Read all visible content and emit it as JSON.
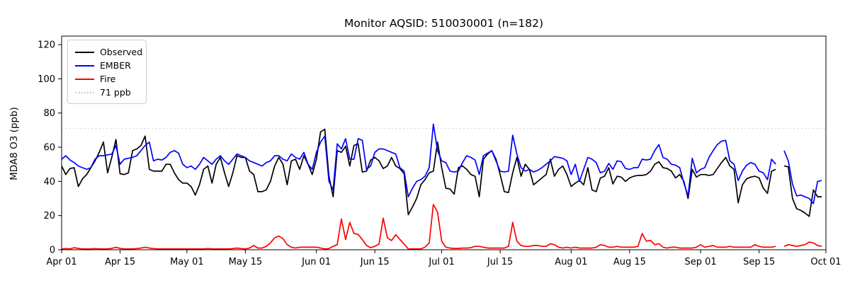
{
  "title": "Monitor AQSID: 510030001 (n=182)",
  "axes": {
    "ylabel": "MDA8 O3 (ppb)",
    "yticks": [
      0,
      20,
      40,
      60,
      80,
      100,
      120
    ],
    "ylim": [
      0,
      125
    ],
    "xlim_days": [
      0,
      183
    ],
    "xticks": [
      {
        "label": "Apr 01",
        "day": 0
      },
      {
        "label": "Apr 15",
        "day": 14
      },
      {
        "label": "May 01",
        "day": 30
      },
      {
        "label": "May 15",
        "day": 44
      },
      {
        "label": "Jun 01",
        "day": 61
      },
      {
        "label": "Jun 15",
        "day": 75
      },
      {
        "label": "Jul 01",
        "day": 91
      },
      {
        "label": "Jul 15",
        "day": 105
      },
      {
        "label": "Aug 01",
        "day": 122
      },
      {
        "label": "Aug 15",
        "day": 136
      },
      {
        "label": "Sep 01",
        "day": 153
      },
      {
        "label": "Sep 15",
        "day": 167
      },
      {
        "label": "Oct 01",
        "day": 183
      }
    ]
  },
  "legend": {
    "items": [
      {
        "label": "Observed",
        "color": "#000000",
        "style": "solid"
      },
      {
        "label": "EMBER",
        "color": "#0000ff",
        "style": "solid"
      },
      {
        "label": "Fire",
        "color": "#ff0000",
        "style": "solid"
      },
      {
        "label": "71 ppb",
        "color": "#c9c9c9",
        "style": "dotted"
      }
    ]
  },
  "chart_data": {
    "type": "line",
    "x_axis": "date, daily from Apr 01 to Sep 30 (day index 0-182), one missing day (Sep 20) so n=182",
    "title": "Monitor AQSID: 510030001 (n=182)",
    "ylabel": "MDA8 O3 (ppb)",
    "ylim": [
      0,
      125
    ],
    "grid": false,
    "legend_position": "upper left",
    "threshold": {
      "value": 71,
      "label": "71 ppb",
      "color": "#c9c9c9",
      "linestyle": "dotted"
    },
    "series": [
      {
        "name": "Observed",
        "color": "#000000",
        "values": [
          49,
          44,
          47.5,
          48,
          37,
          41.5,
          44,
          48,
          52,
          57,
          63,
          45,
          54,
          64.5,
          44.5,
          44,
          45,
          58,
          59,
          61,
          66.5,
          47,
          46,
          46,
          46,
          50,
          50,
          45,
          41,
          39,
          39,
          37,
          32,
          38,
          47,
          49,
          39,
          50,
          54,
          45,
          37,
          45,
          55,
          54,
          54,
          46,
          44,
          34,
          34,
          35,
          40,
          49,
          54,
          50,
          38,
          52,
          53,
          47,
          55,
          50,
          44,
          53,
          69,
          70.5,
          43,
          31,
          58,
          57,
          60.5,
          49,
          61,
          62,
          45.5,
          46,
          52.5,
          54,
          52,
          47.5,
          49,
          54,
          49,
          47.5,
          44.5,
          20.5,
          25,
          30,
          38,
          41,
          45,
          46,
          63,
          48,
          36,
          35.5,
          32.5,
          48,
          49,
          47,
          44,
          43,
          31,
          53,
          56,
          58,
          53,
          44,
          34,
          33.5,
          45,
          54,
          43,
          50,
          47,
          38,
          40,
          42,
          44,
          53,
          43,
          47,
          49,
          44,
          37,
          39,
          40.5,
          38,
          48,
          35,
          34,
          42,
          43,
          48,
          38.5,
          43,
          42.5,
          40,
          42,
          43,
          43.5,
          43.5,
          44,
          46,
          50,
          51.5,
          48,
          47.5,
          46,
          42,
          44,
          40,
          30,
          47,
          42.5,
          44,
          44,
          43.5,
          44,
          47.5,
          51,
          54,
          49,
          47,
          27.5,
          38,
          41.5,
          42.5,
          43,
          42,
          36,
          33,
          46,
          47,
          null,
          49,
          48.5,
          30,
          24,
          23,
          21.5,
          19.5,
          35,
          31,
          31
        ]
      },
      {
        "name": "EMBER",
        "color": "#0000ff",
        "values": [
          53,
          55,
          52.5,
          51,
          49,
          48,
          47,
          48,
          53,
          55,
          55,
          55.5,
          56,
          61,
          50,
          53,
          53.5,
          54,
          55,
          58,
          61,
          63,
          52,
          53,
          52.5,
          54,
          57,
          58,
          56.5,
          50,
          48,
          49,
          47,
          50,
          54,
          52,
          50,
          53,
          55,
          52,
          50,
          53,
          56,
          55,
          54,
          52,
          51,
          50,
          49,
          51,
          52,
          55,
          55,
          53,
          52,
          56,
          54,
          53,
          57,
          50,
          47,
          57,
          63,
          66.5,
          40,
          35,
          62,
          59,
          65,
          53,
          53,
          65,
          64,
          47,
          49,
          57,
          59,
          59,
          58,
          57,
          56,
          48,
          46,
          31,
          36,
          40,
          41,
          43,
          48,
          73.5,
          58,
          52,
          51,
          46,
          45.5,
          46,
          51,
          55,
          54,
          52.5,
          44,
          55,
          56.5,
          58,
          52,
          46,
          45.5,
          46,
          67,
          56,
          48,
          46,
          47,
          45.5,
          46.5,
          48,
          50,
          52,
          54.5,
          54,
          53.5,
          52,
          44,
          50,
          40,
          47,
          54,
          53,
          51,
          45,
          46,
          50.5,
          47,
          52,
          51.5,
          47.5,
          47,
          48,
          48,
          53,
          52.5,
          53,
          58,
          61.5,
          54,
          53,
          50,
          49.5,
          48,
          39,
          31.5,
          53.5,
          45,
          47,
          48,
          54,
          58,
          61.5,
          63.5,
          64,
          52,
          50,
          40.5,
          46,
          49.5,
          51,
          50,
          46,
          45,
          41,
          53,
          50,
          null,
          58,
          52,
          38.5,
          31.5,
          32,
          31,
          30,
          27,
          40,
          40.5
        ]
      },
      {
        "name": "Fire",
        "color": "#ff0000",
        "values": [
          0.5,
          0.7,
          0.5,
          1.2,
          0.8,
          0.5,
          0.5,
          0.5,
          0.7,
          0.5,
          0.5,
          0.5,
          0.8,
          1.5,
          0.8,
          0.5,
          0.5,
          0.5,
          0.7,
          1,
          1.5,
          1,
          0.7,
          0.5,
          0.5,
          0.5,
          0.5,
          0.5,
          0.5,
          0.5,
          0.5,
          0.5,
          0.5,
          0.5,
          0.5,
          0.7,
          0.5,
          0.5,
          0.5,
          0.5,
          0.5,
          0.7,
          1,
          0.7,
          0.5,
          1,
          2.5,
          1,
          1,
          2,
          4,
          7,
          8,
          6.5,
          3,
          1.5,
          1,
          1.5,
          1.5,
          1.5,
          1.5,
          1.5,
          1,
          0.5,
          0.7,
          2,
          3,
          18,
          6,
          16,
          9.5,
          9,
          6,
          2.5,
          1.2,
          2,
          3.3,
          18.5,
          7,
          5.4,
          8.8,
          6,
          3.3,
          0.5,
          0.5,
          0.5,
          0.5,
          1.5,
          4,
          26.5,
          22,
          5,
          1.5,
          1,
          0.8,
          0.8,
          1,
          1,
          1.2,
          2,
          2,
          1.5,
          1,
          1,
          1,
          1,
          1,
          2,
          16,
          5,
          2.5,
          2,
          2,
          2.5,
          2.5,
          2,
          2,
          3.5,
          3,
          1.5,
          1,
          1.5,
          1,
          1.5,
          1,
          1,
          1,
          1,
          1.5,
          3,
          2.5,
          1.5,
          1.5,
          2,
          1.5,
          1.5,
          1.5,
          1.5,
          2,
          9.5,
          5,
          5.5,
          3,
          3.5,
          1.5,
          1,
          1.5,
          1.5,
          1,
          1,
          1,
          1,
          1.5,
          3,
          1.5,
          2,
          2.5,
          1.5,
          1.5,
          1.5,
          2,
          1.5,
          1.5,
          1.5,
          1.5,
          1.5,
          3,
          2,
          1.5,
          1.5,
          1.5,
          2,
          null,
          2,
          3,
          2.5,
          2,
          2.5,
          3,
          4.5,
          4,
          2.5,
          2
        ]
      }
    ]
  }
}
